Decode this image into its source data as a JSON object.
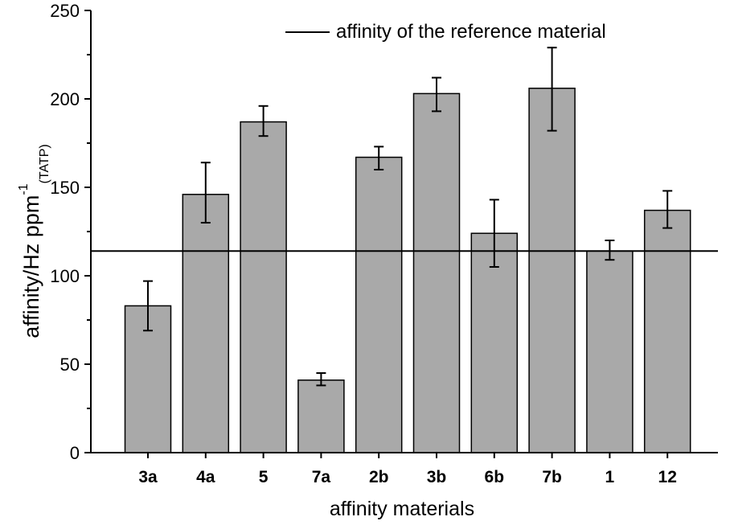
{
  "chart_data": {
    "type": "bar",
    "title": "",
    "xlabel": "affinity materials",
    "ylabel": "affinity/Hz ppm",
    "ylabel_sup": "-1",
    "ylabel_sub": "(TATP)",
    "categories": [
      "3a",
      "4a",
      "5",
      "7a",
      "2b",
      "3b",
      "6b",
      "7b",
      "1",
      "12"
    ],
    "values": [
      83,
      146,
      187,
      41,
      167,
      203,
      124,
      206,
      114,
      137
    ],
    "error_upper": [
      97,
      164,
      196,
      45,
      173,
      212,
      143,
      229,
      120,
      148
    ],
    "error_lower": [
      69,
      130,
      179,
      38,
      160,
      193,
      105,
      182,
      109,
      127
    ],
    "reference_line": {
      "value": 114,
      "label": "affinity of the reference material"
    },
    "ylim": [
      0,
      250
    ],
    "yticks": [
      "0",
      "50",
      "100",
      "150",
      "200",
      "250"
    ],
    "grid": false,
    "legend_position": "top-center",
    "colors": {
      "bar": "#a9a9a9",
      "stroke": "#000000"
    }
  }
}
